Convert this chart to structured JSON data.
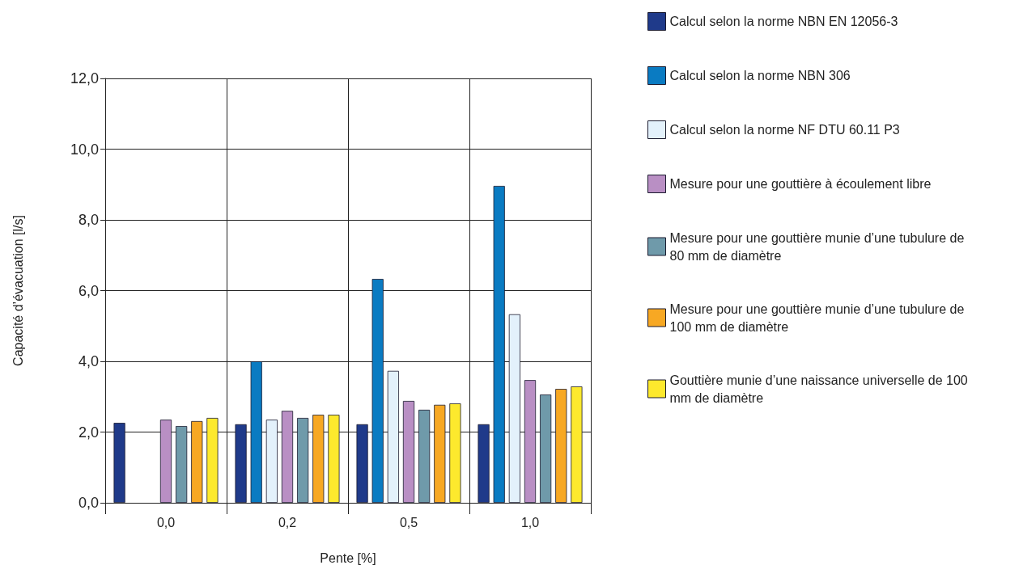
{
  "chart_data": {
    "type": "bar",
    "xlabel": "Pente [%]",
    "ylabel": "Capacité d’évacuation [l/s]",
    "categories": [
      "0,0",
      "0,2",
      "0,5",
      "1,0"
    ],
    "ylim": [
      0,
      12
    ],
    "yticks": [
      {
        "value": 0,
        "label": "0,0"
      },
      {
        "value": 2,
        "label": "2,0"
      },
      {
        "value": 4,
        "label": "4,0"
      },
      {
        "value": 6,
        "label": "6,0"
      },
      {
        "value": 8,
        "label": "8,0"
      },
      {
        "value": 10,
        "label": "10,0"
      },
      {
        "value": 12,
        "label": "12,0"
      }
    ],
    "grid": true,
    "legend": "right",
    "series": [
      {
        "name": "Calcul selon la norme NBN EN 12056-3",
        "color": "#1f3a8a",
        "values": [
          2.26,
          2.22,
          2.22,
          2.22
        ]
      },
      {
        "name": "Calcul selon la norme NBN 306",
        "color": "#0a7bc2",
        "values": [
          0,
          4.0,
          6.33,
          8.96
        ]
      },
      {
        "name": "Calcul selon la norme NF DTU 60.11 P3",
        "color": "#e3f1fb",
        "values": [
          0,
          2.35,
          3.73,
          5.33
        ]
      },
      {
        "name": "Mesure pour une gouttière à écoulement libre",
        "color": "#b98fc4",
        "values": [
          2.35,
          2.6,
          2.88,
          3.47
        ]
      },
      {
        "name": "Mesure pour une gouttière munie d’une tubulure de 80 mm de diamètre",
        "color": "#6f9aaa",
        "values": [
          2.17,
          2.4,
          2.63,
          3.06
        ]
      },
      {
        "name": "Mesure pour une gouttière munie d’une tubulure de 100 mm de diamètre",
        "color": "#f7a823",
        "values": [
          2.31,
          2.49,
          2.77,
          3.22
        ]
      },
      {
        "name": "Gouttière munie d’une naissance universelle de 100 mm de diamètre",
        "color": "#fde92d",
        "values": [
          2.4,
          2.49,
          2.81,
          3.29
        ]
      }
    ]
  }
}
